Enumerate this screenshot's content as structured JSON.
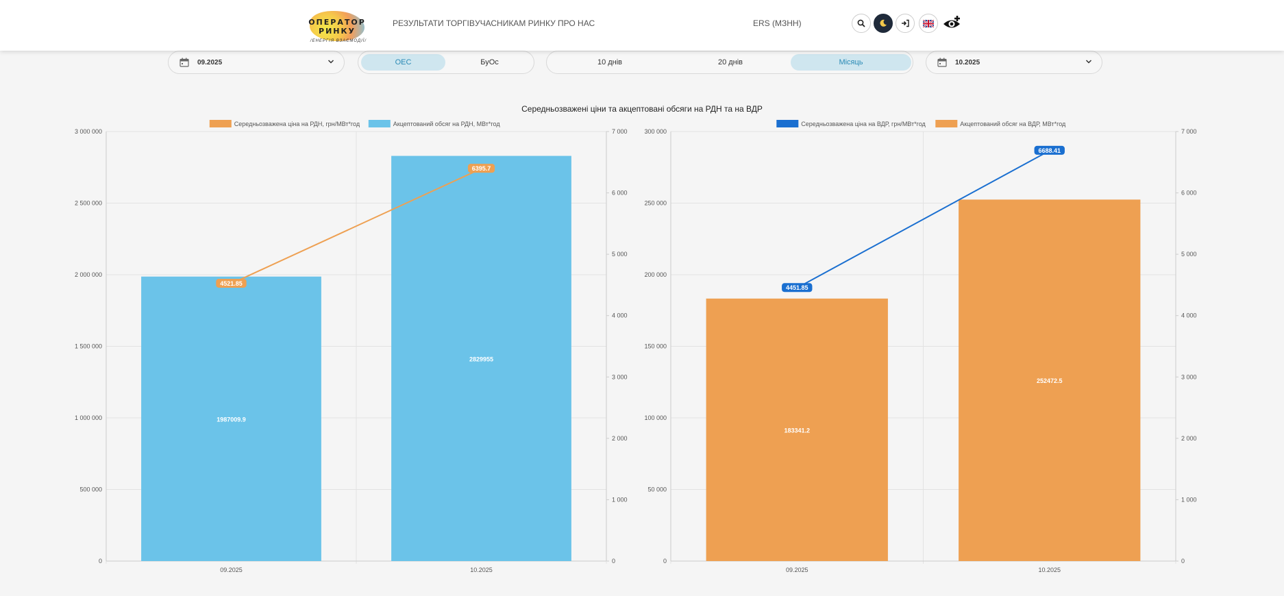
{
  "header": {
    "logo": {
      "line1": "ОПЕРАТОР",
      "line2": "РИНКУ",
      "line3": "/ЕНЕРГІЯ ВЗАЄМОДІЇ/"
    },
    "nav": [
      "РЕЗУЛЬТАТИ ТОРГІВ",
      "УЧАСНИКАМ РИНКУ",
      "ПРО НАС"
    ],
    "ers_label": "ERS (МЗНН)",
    "icons": [
      "search-icon",
      "moon-icon",
      "sign-in-icon",
      "uk-flag-icon",
      "eye-plus-icon"
    ]
  },
  "controls": {
    "date_from": "09.2025",
    "mode_tabs": [
      {
        "label": "ОЕС",
        "active": true
      },
      {
        "label": "БуОс",
        "active": false
      }
    ],
    "period_tabs": [
      {
        "label": "10 днів",
        "active": false
      },
      {
        "label": "20 днів",
        "active": false
      },
      {
        "label": "Місяць",
        "active": true
      }
    ],
    "date_to": "10.2025"
  },
  "title": "Середньозважені ціни та акцептовані обсяги на РДН та на ВДР",
  "colors": {
    "light_blue": "#6bc3e9",
    "orange": "#eea052",
    "dark_blue": "#1a6fd0"
  },
  "chart_data": [
    {
      "type": "bar",
      "categories": [
        "09.2025",
        "10.2025"
      ],
      "series": [
        {
          "name": "Акцептований обсяг на РДН, МВт*год",
          "kind": "bar",
          "axis": "left",
          "color": "#6bc3e9",
          "values": [
            1987009.9,
            2829955
          ],
          "labels": [
            "1987009.9",
            "2829955"
          ]
        },
        {
          "name": "Середньозважена ціна на РДН, грн/МВт*год",
          "kind": "line",
          "axis": "right",
          "color": "#eea052",
          "values": [
            4521.85,
            6395.7
          ],
          "labels": [
            "4521.85",
            "6395.7"
          ]
        }
      ],
      "legend": [
        {
          "name": "Середньозважена ціна на РДН, грн/МВт*год",
          "color": "#eea052"
        },
        {
          "name": "Акцептований обсяг на РДН, МВт*год",
          "color": "#6bc3e9"
        }
      ],
      "ylim": [
        0,
        3000000
      ],
      "yticks": [
        0,
        500000,
        1000000,
        1500000,
        2000000,
        2500000,
        3000000
      ],
      "ytick_labels": [
        "0",
        "500 000",
        "1 000 000",
        "1 500 000",
        "2 000 000",
        "2 500 000",
        "3 000 000"
      ],
      "y2lim": [
        0,
        7000
      ],
      "y2ticks": [
        0,
        1000,
        2000,
        3000,
        4000,
        5000,
        6000,
        7000
      ],
      "y2tick_labels": [
        "0",
        "1 000",
        "2 000",
        "3 000",
        "4 000",
        "5 000",
        "6 000",
        "7 000"
      ],
      "grid": true,
      "legend_position": "top"
    },
    {
      "type": "bar",
      "categories": [
        "09.2025",
        "10.2025"
      ],
      "series": [
        {
          "name": "Акцептований обсяг на ВДР, МВт*год",
          "kind": "bar",
          "axis": "left",
          "color": "#eea052",
          "values": [
            183341.2,
            252472.5
          ],
          "labels": [
            "183341.2",
            "252472.5"
          ]
        },
        {
          "name": "Середньозважена ціна на ВДР, грн/МВт*год",
          "kind": "line",
          "axis": "right",
          "color": "#1a6fd0",
          "values": [
            4451.85,
            6688.41
          ],
          "labels": [
            "4451.85",
            "6688.41"
          ]
        }
      ],
      "legend": [
        {
          "name": "Середньозважена ціна на ВДР, грн/МВт*год",
          "color": "#1a6fd0"
        },
        {
          "name": "Акцептований обсяг на ВДР, МВт*год",
          "color": "#eea052"
        }
      ],
      "ylim": [
        0,
        300000
      ],
      "yticks": [
        0,
        50000,
        100000,
        150000,
        200000,
        250000,
        300000
      ],
      "ytick_labels": [
        "0",
        "50 000",
        "100 000",
        "150 000",
        "200 000",
        "250 000",
        "300 000"
      ],
      "y2lim": [
        0,
        7000
      ],
      "y2ticks": [
        0,
        1000,
        2000,
        3000,
        4000,
        5000,
        6000,
        7000
      ],
      "y2tick_labels": [
        "0",
        "1 000",
        "2 000",
        "3 000",
        "4 000",
        "5 000",
        "6 000",
        "7 000"
      ],
      "grid": true,
      "legend_position": "top"
    }
  ]
}
